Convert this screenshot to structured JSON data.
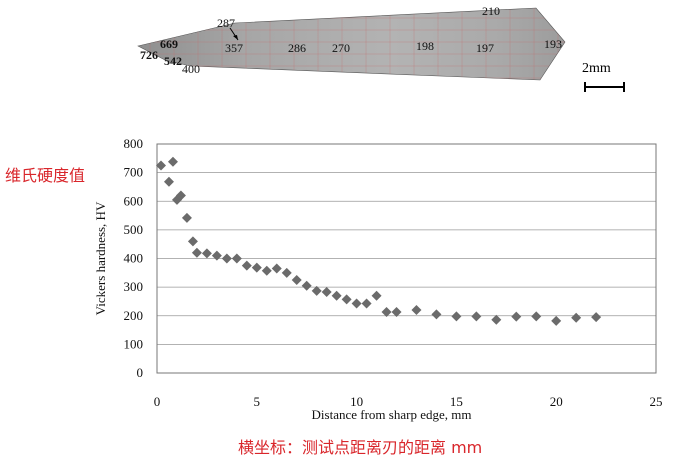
{
  "specimen": {
    "hardness_labels": [
      {
        "text": "287",
        "bold": false
      },
      {
        "text": "210",
        "bold": false
      },
      {
        "text": "669",
        "bold": true
      },
      {
        "text": "357",
        "bold": false
      },
      {
        "text": "286",
        "bold": false
      },
      {
        "text": "270",
        "bold": false
      },
      {
        "text": "198",
        "bold": false
      },
      {
        "text": "197",
        "bold": false
      },
      {
        "text": "193",
        "bold": false
      },
      {
        "text": "726",
        "bold": true
      },
      {
        "text": "542",
        "bold": true
      },
      {
        "text": "400",
        "bold": false
      }
    ],
    "scale_bar_label": "2mm"
  },
  "annotations": {
    "y_axis_cn": "维氏硬度值",
    "x_axis_cn": "横坐标：测试点距离刃的距离   mm"
  },
  "chart_data": {
    "type": "scatter",
    "xlabel": "Distance from sharp edge,  mm",
    "ylabel": "Vickers hardness, HV",
    "xlim": [
      0,
      25
    ],
    "ylim": [
      0,
      800
    ],
    "x_ticks": [
      "0",
      "5",
      "10",
      "15",
      "20",
      "25"
    ],
    "y_ticks": [
      "0",
      "100",
      "200",
      "300",
      "400",
      "500",
      "600",
      "700",
      "800"
    ],
    "grid": "horizontal",
    "marker": "diamond",
    "color": "#6b6b6b",
    "series": [
      {
        "points": [
          [
            0.2,
            725
          ],
          [
            0.6,
            668
          ],
          [
            0.8,
            738
          ],
          [
            1.0,
            605
          ],
          [
            1.2,
            620
          ],
          [
            1.5,
            542
          ],
          [
            1.8,
            460
          ],
          [
            2.0,
            420
          ],
          [
            2.5,
            418
          ],
          [
            3.0,
            410
          ],
          [
            3.5,
            400
          ],
          [
            4.0,
            400
          ],
          [
            4.5,
            375
          ],
          [
            5.0,
            368
          ],
          [
            5.5,
            357
          ],
          [
            6.0,
            365
          ],
          [
            6.5,
            350
          ],
          [
            7.0,
            325
          ],
          [
            7.5,
            305
          ],
          [
            8.0,
            287
          ],
          [
            8.5,
            283
          ],
          [
            9.0,
            270
          ],
          [
            9.5,
            257
          ],
          [
            10.0,
            243
          ],
          [
            10.5,
            243
          ],
          [
            11.0,
            270
          ],
          [
            11.5,
            213
          ],
          [
            12.0,
            213
          ],
          [
            13.0,
            220
          ],
          [
            14.0,
            205
          ],
          [
            15.0,
            198
          ],
          [
            16.0,
            198
          ],
          [
            17.0,
            186
          ],
          [
            18.0,
            197
          ],
          [
            19.0,
            198
          ],
          [
            20.0,
            182
          ],
          [
            21.0,
            193
          ],
          [
            22.0,
            195
          ]
        ]
      }
    ]
  }
}
